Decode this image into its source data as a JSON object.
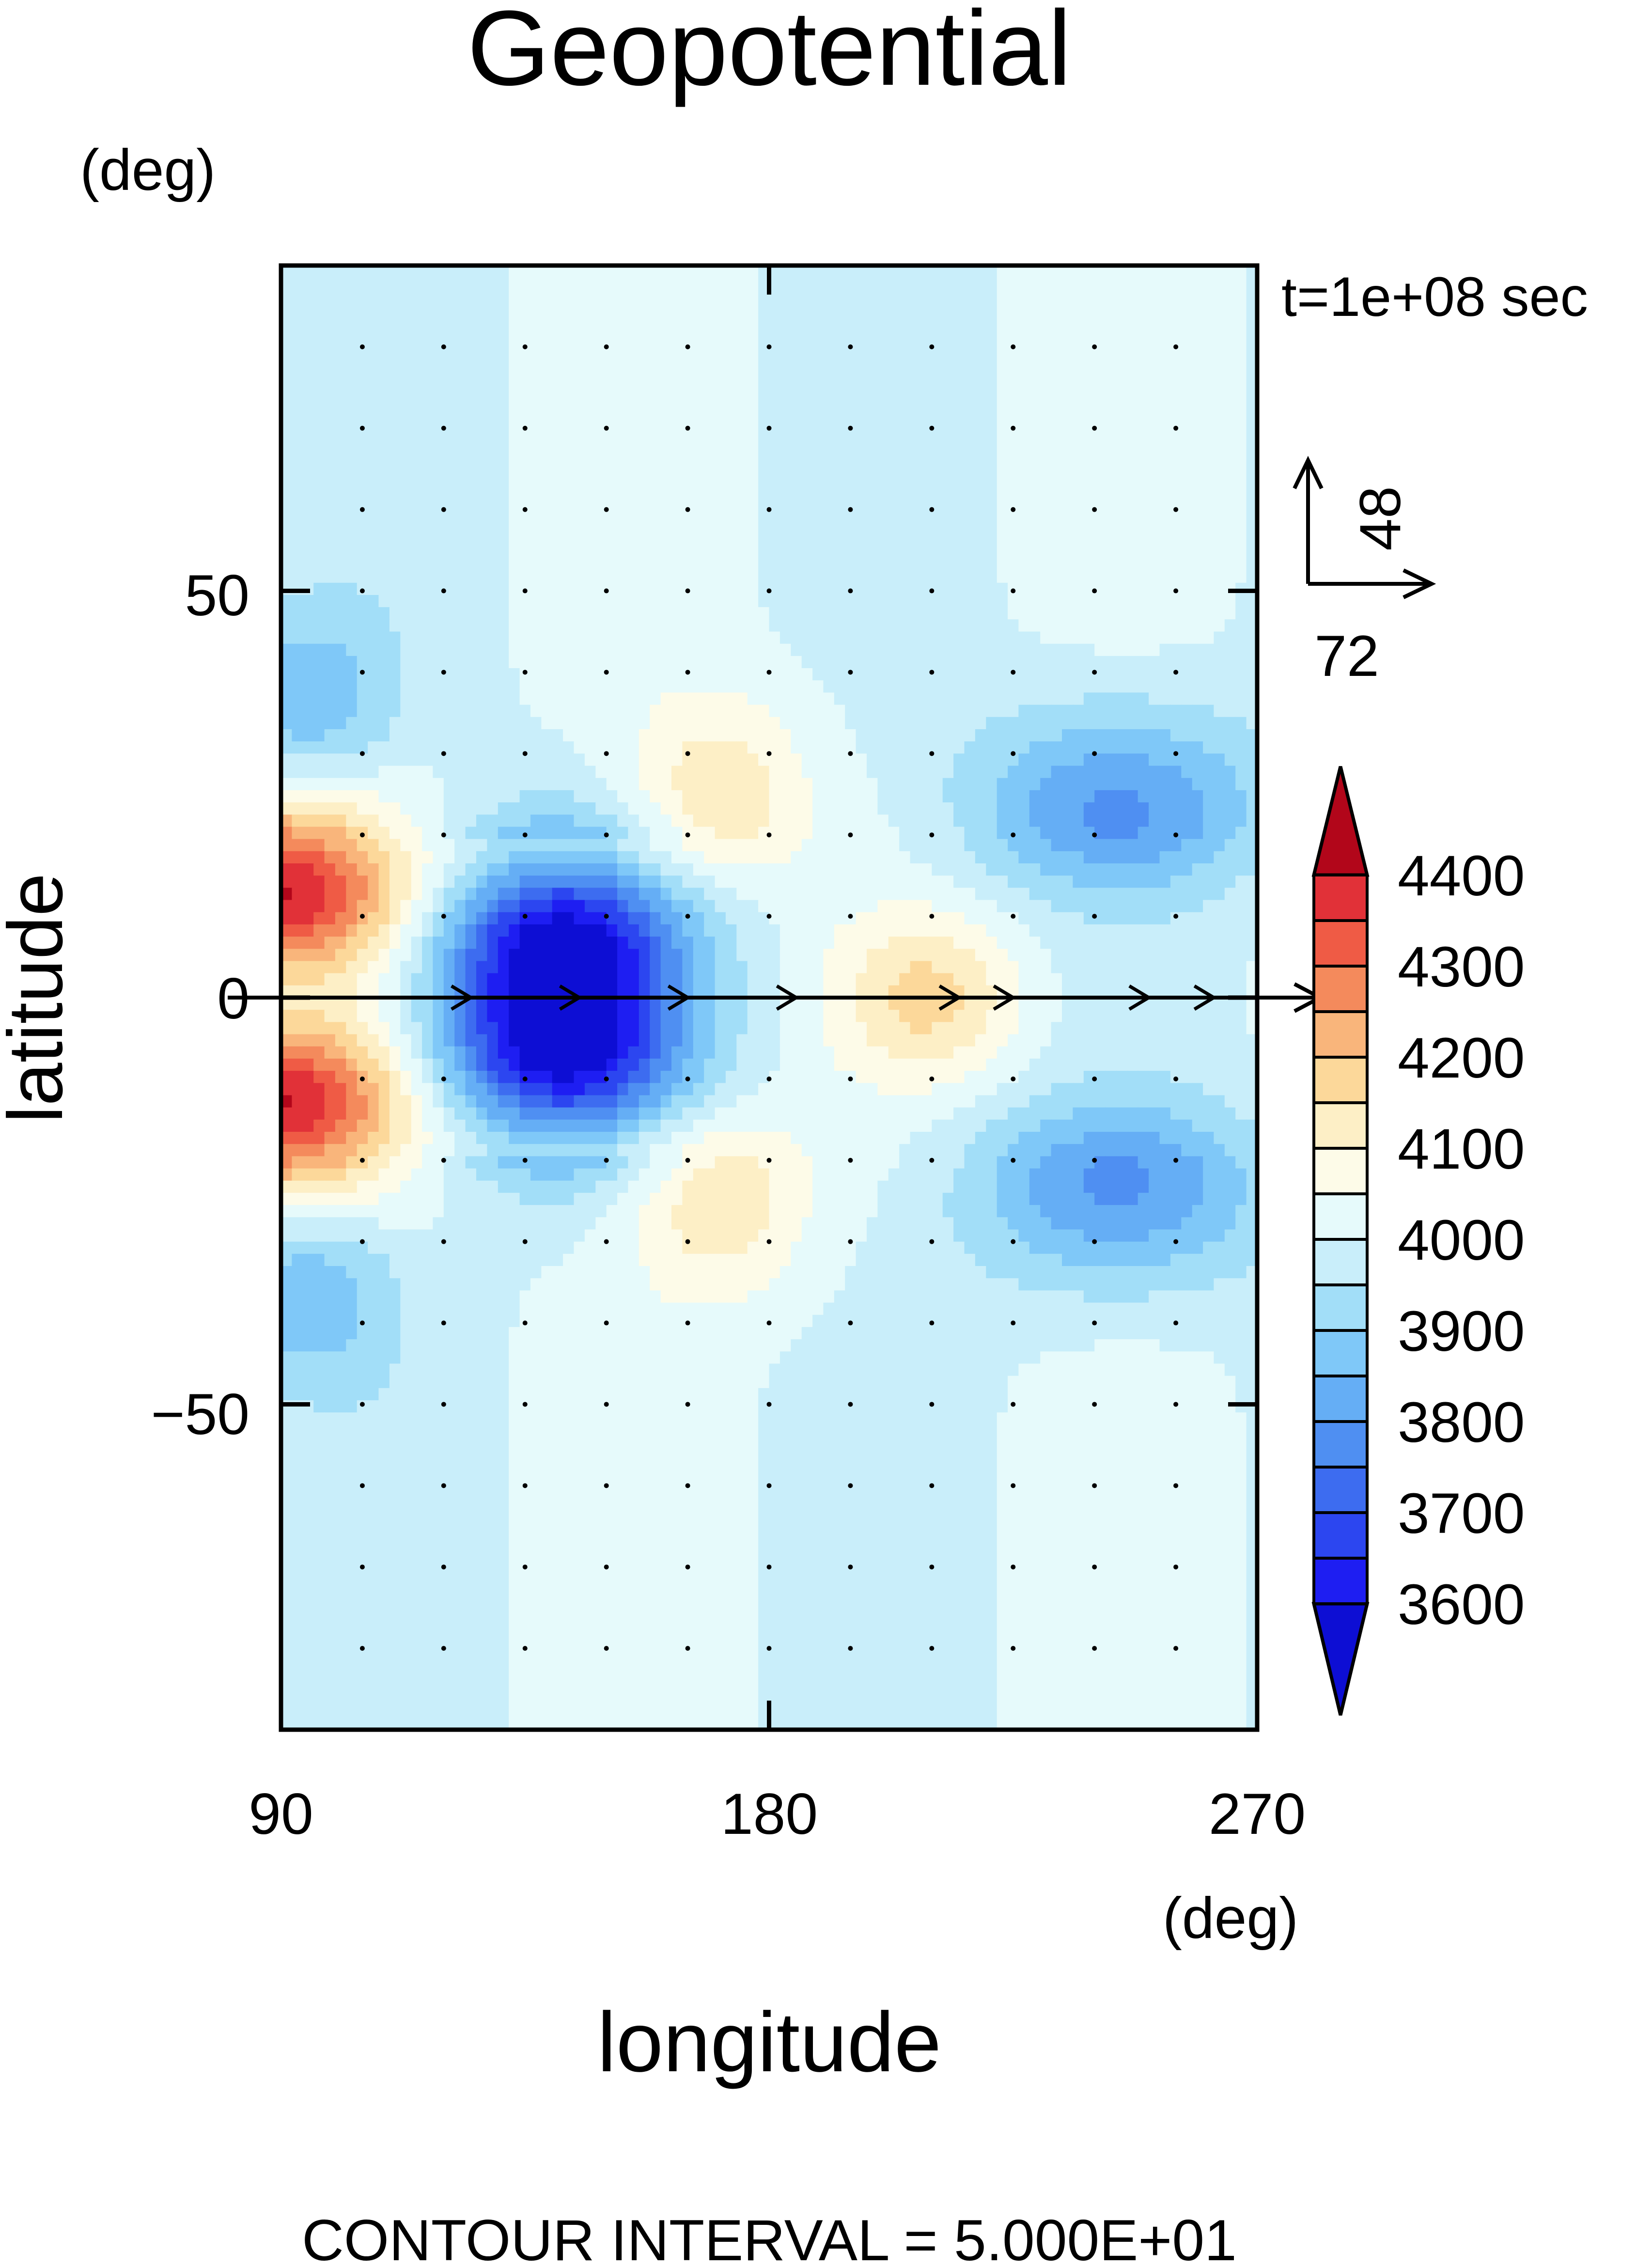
{
  "chart_data": {
    "type": "heatmap",
    "title": "Geopotential",
    "xlabel": "longitude",
    "ylabel": "latitude",
    "x_unit": "(deg)",
    "y_unit": "(deg)",
    "xlim": [
      90,
      270
    ],
    "ylim": [
      -90,
      90
    ],
    "x_ticks": [
      "90",
      "180",
      "270"
    ],
    "y_ticks": [
      "50",
      "0",
      "−50"
    ],
    "x_tick_values": [
      90,
      180,
      270
    ],
    "y_tick_values": [
      50,
      0,
      -50
    ],
    "time_label": "t=1e+08 sec",
    "footer": "CONTOUR INTERVAL = 5.000E+01",
    "vector_reference": {
      "x_label": "72",
      "y_label": "48"
    },
    "colorbar": {
      "levels": [
        3600,
        3650,
        3700,
        3750,
        3800,
        3850,
        3900,
        3950,
        4000,
        4050,
        4100,
        4150,
        4200,
        4250,
        4300,
        4350,
        4400
      ],
      "tick_labels": [
        "3600",
        "3700",
        "3800",
        "3900",
        "4000",
        "4100",
        "4200",
        "4300",
        "4400"
      ],
      "tick_values": [
        3600,
        3700,
        3800,
        3900,
        4000,
        4100,
        4200,
        4300,
        4400
      ],
      "colors": [
        "#0d0ed4",
        "#1e1ef2",
        "#2c46f0",
        "#3d6cf0",
        "#4f8ff2",
        "#65aef5",
        "#7fc8f8",
        "#a2def8",
        "#c9eefa",
        "#e6fafb",
        "#fdfbe8",
        "#fdefc6",
        "#fcd89a",
        "#f9b57b",
        "#f48a5c",
        "#ef5b45",
        "#e13138",
        "#b2061a"
      ]
    },
    "features": [
      {
        "kind": "high",
        "lon": 90,
        "lat": 13,
        "value": 4400
      },
      {
        "kind": "high",
        "lon": 90,
        "lat": -13,
        "value": 4400
      },
      {
        "kind": "low",
        "lon": 141,
        "lat": 7,
        "value": 3600
      },
      {
        "kind": "low",
        "lon": 141,
        "lat": -7,
        "value": 3600
      },
      {
        "kind": "low",
        "lon": 244,
        "lat": 23,
        "value": 3800
      },
      {
        "kind": "low",
        "lon": 244,
        "lat": -23,
        "value": 3800
      },
      {
        "kind": "high",
        "lon": 170,
        "lat": 24,
        "value": 4150
      },
      {
        "kind": "high",
        "lon": 170,
        "lat": -24,
        "value": 4150
      },
      {
        "kind": "high",
        "lon": 210,
        "lat": 0,
        "value": 4150
      },
      {
        "kind": "low",
        "lon": 94,
        "lat": 35,
        "value": 3850
      },
      {
        "kind": "low",
        "lon": 94,
        "lat": -35,
        "value": 3850
      }
    ]
  }
}
